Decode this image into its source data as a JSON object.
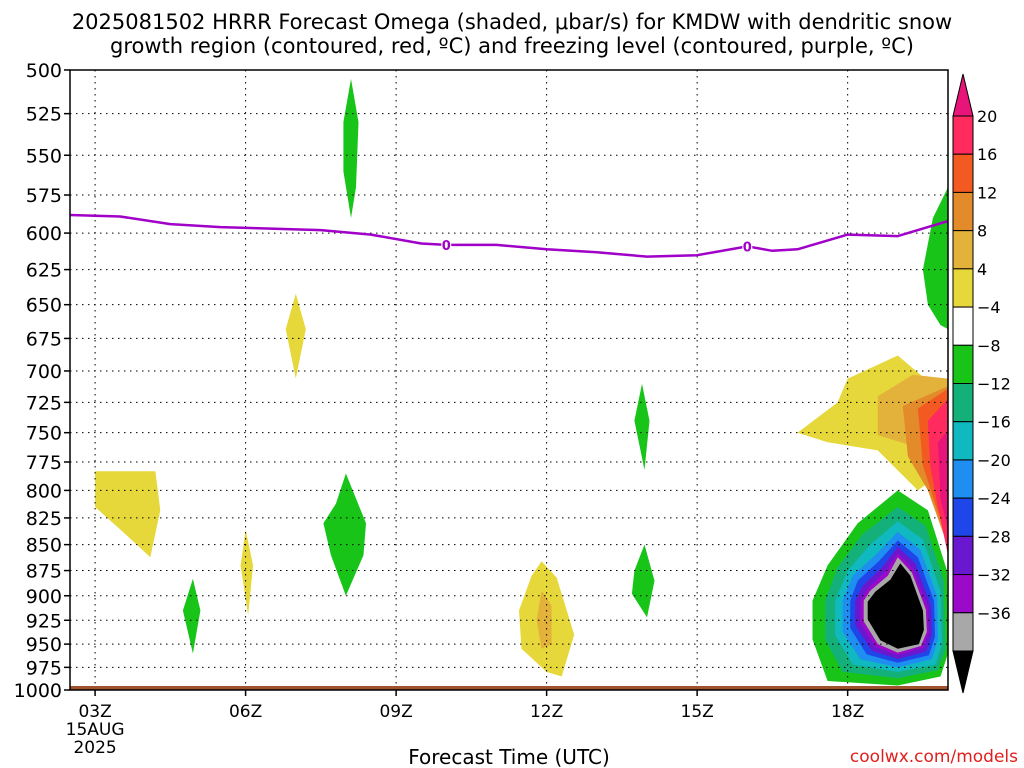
{
  "chart_data": {
    "type": "heatmap",
    "title_line1": "2025081502 HRRR Forecast Omega (shaded, μbar/s) for KMDW with dendritic snow",
    "title_line2": "growth region (contoured, red, ºC) and freezing level (contoured, purple, ºC)",
    "xlabel": "Forecast Time (UTC)",
    "credit": "coolwx.com/models",
    "x_ticks": [
      {
        "hour": 3,
        "label": "03Z"
      },
      {
        "hour": 6,
        "label": "06Z"
      },
      {
        "hour": 9,
        "label": "09Z"
      },
      {
        "hour": 12,
        "label": "12Z"
      },
      {
        "hour": 15,
        "label": "15Z"
      },
      {
        "hour": 18,
        "label": "18Z"
      }
    ],
    "x_date_line1": "15AUG",
    "x_date_line2": "2025",
    "xlim": [
      2.5,
      20.0
    ],
    "ylim": [
      1000,
      500
    ],
    "y_ticks": [
      500,
      525,
      550,
      575,
      600,
      625,
      650,
      675,
      700,
      725,
      750,
      775,
      800,
      825,
      850,
      875,
      900,
      925,
      950,
      975,
      1000
    ],
    "y_scale": "log-pressure",
    "grid": true,
    "colorbar": {
      "labels": [
        "20",
        "16",
        "12",
        "8",
        "4",
        "−4",
        "−8",
        "−12",
        "−16",
        "−20",
        "−24",
        "−28",
        "−32",
        "−36"
      ],
      "colors": [
        "#ff2a5e",
        "#f25a22",
        "#e38a2a",
        "#e3b23a",
        "#e6d83a",
        "#ffffff",
        "#18c418",
        "#14b07a",
        "#10b8c0",
        "#1e8ef0",
        "#1e46e8",
        "#6a18d0",
        "#9a0ac8",
        "#a8a8a8"
      ],
      "top_arrow_color": "#e8147a",
      "bottom_arrow_color": "#000000"
    },
    "freezing_level": {
      "color": "#a000c8",
      "label": "0",
      "label_hours": [
        10.0,
        16.0
      ],
      "points": [
        [
          2.5,
          588
        ],
        [
          3.5,
          589
        ],
        [
          4.5,
          594
        ],
        [
          5.5,
          596
        ],
        [
          6.5,
          597
        ],
        [
          7.5,
          598
        ],
        [
          8.5,
          601
        ],
        [
          9.5,
          607
        ],
        [
          10.0,
          608
        ],
        [
          11.0,
          608
        ],
        [
          12.0,
          611
        ],
        [
          13.0,
          613
        ],
        [
          14.0,
          616
        ],
        [
          15.0,
          615
        ],
        [
          16.0,
          609
        ],
        [
          16.5,
          612
        ],
        [
          17.0,
          611
        ],
        [
          18.0,
          601
        ],
        [
          19.0,
          602
        ],
        [
          20.0,
          592
        ]
      ]
    },
    "shaded_regions": [
      {
        "omega_range": "4 to 8",
        "color": "#e6d83a",
        "points": [
          [
            3.0,
            783
          ],
          [
            4.2,
            783
          ],
          [
            4.25,
            800
          ],
          [
            4.3,
            818
          ],
          [
            4.1,
            862
          ],
          [
            3.6,
            840
          ],
          [
            3.0,
            815
          ]
        ]
      },
      {
        "omega_range": "4 to 8",
        "color": "#e6d83a",
        "points": [
          [
            7.0,
            642
          ],
          [
            7.2,
            668
          ],
          [
            7.0,
            706
          ],
          [
            6.8,
            668
          ]
        ]
      },
      {
        "omega_range": "4 to 8",
        "color": "#e6d83a",
        "points": [
          [
            6.0,
            836
          ],
          [
            6.15,
            870
          ],
          [
            6.05,
            920
          ],
          [
            5.9,
            870
          ]
        ]
      },
      {
        "omega_range": "4 to 8",
        "color": "#e6d83a",
        "points": [
          [
            11.9,
            866
          ],
          [
            12.2,
            882
          ],
          [
            12.55,
            940
          ],
          [
            12.3,
            985
          ],
          [
            12.0,
            980
          ],
          [
            11.5,
            955
          ],
          [
            11.45,
            915
          ],
          [
            11.7,
            880
          ]
        ]
      },
      {
        "omega_range": "8 to 12",
        "color": "#e3b23a",
        "points": [
          [
            11.9,
            895
          ],
          [
            12.1,
            910
          ],
          [
            12.1,
            950
          ],
          [
            11.9,
            955
          ],
          [
            11.8,
            925
          ]
        ]
      },
      {
        "omega_range": "-8 to -4",
        "color": "#18c418",
        "points": [
          [
            8.1,
            505
          ],
          [
            8.25,
            530
          ],
          [
            8.2,
            570
          ],
          [
            8.1,
            590
          ],
          [
            7.95,
            560
          ],
          [
            7.95,
            530
          ]
        ]
      },
      {
        "omega_range": "-8 to -4",
        "color": "#18c418",
        "points": [
          [
            8.0,
            785
          ],
          [
            8.4,
            830
          ],
          [
            8.35,
            860
          ],
          [
            8.0,
            900
          ],
          [
            7.7,
            860
          ],
          [
            7.55,
            830
          ],
          [
            7.8,
            812
          ]
        ]
      },
      {
        "omega_range": "-8 to -4",
        "color": "#18c418",
        "points": [
          [
            4.95,
            883
          ],
          [
            5.1,
            915
          ],
          [
            4.95,
            960
          ],
          [
            4.75,
            915
          ]
        ]
      },
      {
        "omega_range": "-8 to -4",
        "color": "#18c418",
        "points": [
          [
            13.9,
            710
          ],
          [
            14.05,
            740
          ],
          [
            13.95,
            782
          ],
          [
            13.75,
            740
          ]
        ]
      },
      {
        "omega_range": "-8 to -4",
        "color": "#18c418",
        "points": [
          [
            13.95,
            850
          ],
          [
            14.15,
            885
          ],
          [
            14.0,
            922
          ],
          [
            13.7,
            898
          ],
          [
            13.75,
            875
          ]
        ]
      },
      {
        "omega_range": "-8 to -4",
        "color": "#18c418",
        "points": [
          [
            20.0,
            570
          ],
          [
            19.7,
            590
          ],
          [
            19.5,
            625
          ],
          [
            19.6,
            650
          ],
          [
            19.85,
            665
          ],
          [
            20.0,
            668
          ]
        ]
      },
      {
        "omega_range": "4 to 8",
        "color": "#e6d83a",
        "points": [
          [
            18.0,
            706
          ],
          [
            19.0,
            688
          ],
          [
            19.6,
            708
          ],
          [
            20.0,
            730
          ],
          [
            20.0,
            748
          ],
          [
            19.7,
            790
          ],
          [
            19.4,
            800
          ],
          [
            18.6,
            765
          ],
          [
            17.6,
            758
          ],
          [
            17.0,
            750
          ],
          [
            17.8,
            725
          ]
        ]
      },
      {
        "omega_range": "8 to 12",
        "color": "#e3b23a",
        "points": [
          [
            18.6,
            720
          ],
          [
            19.3,
            703
          ],
          [
            20.0,
            706
          ],
          [
            20.0,
            830
          ],
          [
            19.55,
            785
          ],
          [
            19.2,
            760
          ],
          [
            18.6,
            752
          ]
        ]
      },
      {
        "omega_range": "12 to 16",
        "color": "#e38a2a",
        "points": [
          [
            19.1,
            728
          ],
          [
            20.0,
            712
          ],
          [
            20.0,
            852
          ],
          [
            19.6,
            800
          ],
          [
            19.2,
            770
          ]
        ]
      },
      {
        "omega_range": "16 to 20",
        "color": "#f25a22",
        "points": [
          [
            19.4,
            730
          ],
          [
            20.0,
            714
          ],
          [
            20.0,
            845
          ],
          [
            19.8,
            820
          ],
          [
            19.5,
            778
          ]
        ]
      },
      {
        "omega_range": "> 20",
        "color": "#ff2a5e",
        "points": [
          [
            19.6,
            740
          ],
          [
            20.0,
            722
          ],
          [
            20.0,
            860
          ],
          [
            19.8,
            815
          ],
          [
            19.65,
            780
          ]
        ]
      },
      {
        "omega_range": "> 20",
        "color": "#e8147a",
        "points": [
          [
            19.8,
            758
          ],
          [
            20.0,
            748
          ],
          [
            20.0,
            835
          ],
          [
            19.85,
            808
          ]
        ]
      },
      {
        "omega_range": "-8 to -4",
        "color": "#18c418",
        "points": [
          [
            19.0,
            800
          ],
          [
            19.6,
            818
          ],
          [
            19.98,
            875
          ],
          [
            20.0,
            960
          ],
          [
            19.85,
            985
          ],
          [
            19.0,
            995
          ],
          [
            17.6,
            990
          ],
          [
            17.3,
            945
          ],
          [
            17.3,
            905
          ],
          [
            17.6,
            870
          ],
          [
            18.2,
            830
          ]
        ]
      },
      {
        "omega_range": "-12 to -8",
        "color": "#14b07a",
        "points": [
          [
            19.0,
            815
          ],
          [
            19.55,
            832
          ],
          [
            19.92,
            885
          ],
          [
            19.95,
            955
          ],
          [
            19.8,
            978
          ],
          [
            19.0,
            987
          ],
          [
            17.9,
            980
          ],
          [
            17.55,
            945
          ],
          [
            17.55,
            905
          ],
          [
            17.8,
            872
          ],
          [
            18.3,
            840
          ]
        ]
      },
      {
        "omega_range": "-16 to -12",
        "color": "#10b8c0",
        "points": [
          [
            19.0,
            828
          ],
          [
            19.5,
            845
          ],
          [
            19.85,
            895
          ],
          [
            19.88,
            950
          ],
          [
            19.75,
            972
          ],
          [
            19.0,
            980
          ],
          [
            18.1,
            972
          ],
          [
            17.75,
            940
          ],
          [
            17.75,
            905
          ],
          [
            18.0,
            875
          ],
          [
            18.45,
            850
          ]
        ]
      },
      {
        "omega_range": "-20 to -16",
        "color": "#1e8ef0",
        "points": [
          [
            19.0,
            838
          ],
          [
            19.45,
            855
          ],
          [
            19.78,
            900
          ],
          [
            19.8,
            945
          ],
          [
            19.68,
            966
          ],
          [
            19.0,
            975
          ],
          [
            18.25,
            966
          ],
          [
            17.9,
            937
          ],
          [
            17.9,
            905
          ],
          [
            18.1,
            880
          ],
          [
            18.55,
            860
          ]
        ]
      },
      {
        "omega_range": "-24 to -20",
        "color": "#1e46e8",
        "points": [
          [
            19.0,
            846
          ],
          [
            19.4,
            862
          ],
          [
            19.72,
            905
          ],
          [
            19.74,
            942
          ],
          [
            19.62,
            962
          ],
          [
            19.0,
            970
          ],
          [
            18.38,
            961
          ],
          [
            18.05,
            933
          ],
          [
            18.05,
            905
          ],
          [
            18.2,
            885
          ],
          [
            18.62,
            866
          ]
        ]
      },
      {
        "omega_range": "-28 to -24",
        "color": "#6a18d0",
        "points": [
          [
            19.0,
            852
          ],
          [
            19.35,
            868
          ],
          [
            19.66,
            910
          ],
          [
            19.68,
            940
          ],
          [
            19.56,
            958
          ],
          [
            19.0,
            966
          ],
          [
            18.48,
            957
          ],
          [
            18.15,
            930
          ],
          [
            18.15,
            905
          ],
          [
            18.3,
            890
          ],
          [
            18.7,
            871
          ]
        ]
      },
      {
        "omega_range": "-32 to -28",
        "color": "#9a0ac8",
        "points": [
          [
            19.0,
            858
          ],
          [
            19.3,
            873
          ],
          [
            19.6,
            912
          ],
          [
            19.62,
            938
          ],
          [
            19.5,
            954
          ],
          [
            19.0,
            962
          ],
          [
            18.55,
            953
          ],
          [
            18.25,
            928
          ],
          [
            18.25,
            905
          ],
          [
            18.4,
            893
          ],
          [
            18.75,
            876
          ]
        ]
      },
      {
        "omega_range": "-36 to -32",
        "color": "#a8a8a8",
        "points": [
          [
            19.0,
            862
          ],
          [
            19.28,
            877
          ],
          [
            19.56,
            914
          ],
          [
            19.58,
            937
          ],
          [
            19.46,
            952
          ],
          [
            19.0,
            959
          ],
          [
            18.6,
            950
          ],
          [
            18.32,
            926
          ],
          [
            18.32,
            905
          ],
          [
            18.45,
            895
          ],
          [
            18.8,
            880
          ]
        ]
      },
      {
        "omega_range": "< -36",
        "color": "#000000",
        "points": [
          [
            19.05,
            868
          ],
          [
            19.25,
            880
          ],
          [
            19.5,
            915
          ],
          [
            19.52,
            935
          ],
          [
            19.42,
            950
          ],
          [
            19.0,
            955
          ],
          [
            18.65,
            946
          ],
          [
            18.4,
            924
          ],
          [
            18.4,
            906
          ],
          [
            18.55,
            896
          ],
          [
            18.85,
            884
          ]
        ]
      }
    ],
    "ground_color": "#a0522d"
  }
}
